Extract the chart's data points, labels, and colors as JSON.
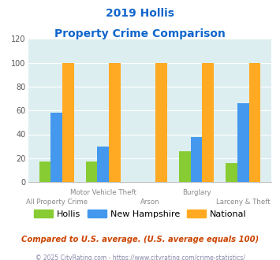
{
  "title_line1": "2019 Hollis",
  "title_line2": "Property Crime Comparison",
  "categories": [
    "All Property Crime",
    "Motor Vehicle Theft",
    "Arson",
    "Burglary",
    "Larceny & Theft"
  ],
  "hollis": [
    17,
    17,
    0,
    26,
    16
  ],
  "new_hampshire": [
    58,
    30,
    0,
    38,
    66
  ],
  "national": [
    100,
    100,
    100,
    100,
    100
  ],
  "hollis_color": "#88cc33",
  "nh_color": "#4499ee",
  "national_color": "#ffaa22",
  "ylim": [
    0,
    120
  ],
  "yticks": [
    0,
    20,
    40,
    60,
    80,
    100,
    120
  ],
  "plot_bg": "#ddeef0",
  "title_color": "#1166cc",
  "xlabel_color": "#888888",
  "footer_note": "Compared to U.S. average. (U.S. average equals 100)",
  "copyright": "© 2025 CityRating.com - https://www.cityrating.com/crime-statistics/",
  "legend_labels": [
    "Hollis",
    "New Hampshire",
    "National"
  ],
  "bar_width": 0.25
}
